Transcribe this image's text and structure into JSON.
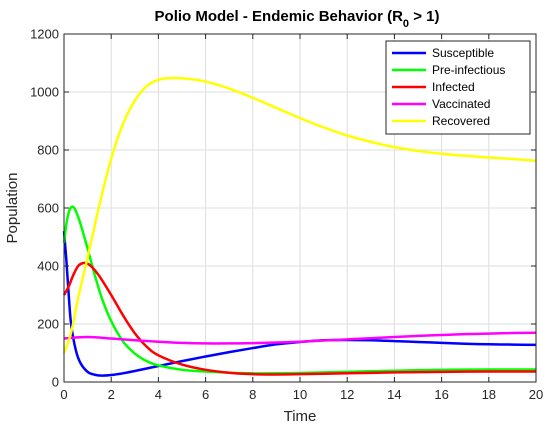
{
  "chart_data": {
    "type": "line",
    "title": {
      "main": "Polio Model - Endemic Behavior (R",
      "sub": "0",
      "tail": " > 1)"
    },
    "xlabel": "Time",
    "ylabel": "Population",
    "xlim": [
      0,
      20
    ],
    "ylim": [
      0,
      1200
    ],
    "xticks": [
      0,
      2,
      4,
      6,
      8,
      10,
      12,
      14,
      16,
      18,
      20
    ],
    "yticks": [
      0,
      200,
      400,
      600,
      800,
      1000,
      1200
    ],
    "grid": true,
    "legend_position": "top-right",
    "series": [
      {
        "name": "Susceptible",
        "color": "#0000ff",
        "x": [
          0,
          0.1,
          0.2,
          0.3,
          0.5,
          0.7,
          1.0,
          1.3,
          1.6,
          2,
          2.5,
          3,
          4,
          5,
          6,
          7,
          8,
          9,
          10,
          11,
          12,
          13,
          14,
          15,
          16,
          17,
          18,
          19,
          20
        ],
        "y": [
          520,
          420,
          300,
          200,
          110,
          65,
          35,
          25,
          22,
          24,
          30,
          38,
          55,
          72,
          88,
          103,
          117,
          130,
          138,
          144,
          145,
          144,
          141,
          138,
          135,
          132,
          130,
          129,
          128
        ]
      },
      {
        "name": "Pre-infectious",
        "color": "#00ff00",
        "x": [
          0,
          0.1,
          0.2,
          0.3,
          0.4,
          0.5,
          0.7,
          1.0,
          1.3,
          1.6,
          2,
          2.5,
          3,
          3.5,
          4,
          5,
          6,
          7,
          8,
          9,
          10,
          12,
          14,
          16,
          18,
          20
        ],
        "y": [
          480,
          545,
          585,
          602,
          603,
          590,
          545,
          460,
          370,
          290,
          210,
          140,
          98,
          72,
          57,
          42,
          36,
          32,
          30,
          30,
          31,
          35,
          39,
          42,
          43,
          43
        ]
      },
      {
        "name": "Infected",
        "color": "#ff0000",
        "x": [
          0,
          0.2,
          0.4,
          0.6,
          0.8,
          1.0,
          1.2,
          1.5,
          2,
          2.5,
          3,
          3.5,
          4,
          5,
          6,
          7,
          8,
          9,
          10,
          12,
          14,
          16,
          18,
          20
        ],
        "y": [
          300,
          330,
          370,
          400,
          410,
          408,
          395,
          365,
          300,
          230,
          168,
          122,
          92,
          60,
          42,
          32,
          27,
          26,
          27,
          30,
          33,
          35,
          36,
          36
        ]
      },
      {
        "name": "Vaccinated",
        "color": "#ff00ff",
        "x": [
          0,
          1,
          2,
          3,
          4,
          5,
          6,
          7,
          8,
          9,
          10,
          11,
          12,
          13,
          14,
          15,
          16,
          17,
          18,
          19,
          20
        ],
        "y": [
          150,
          155,
          150,
          144,
          139,
          135,
          133,
          133,
          134,
          136,
          139,
          143,
          147,
          151,
          155,
          159,
          162,
          165,
          167,
          169,
          170
        ]
      },
      {
        "name": "Recovered",
        "color": "#ffff00",
        "x": [
          0,
          0.3,
          0.6,
          1.0,
          1.5,
          2,
          2.5,
          3,
          3.5,
          4,
          4.5,
          5,
          5.5,
          6,
          7,
          8,
          9,
          10,
          11,
          12,
          13,
          14,
          15,
          16,
          17,
          18,
          19,
          20
        ],
        "y": [
          100,
          170,
          290,
          430,
          610,
          770,
          890,
          970,
          1020,
          1042,
          1048,
          1047,
          1043,
          1036,
          1012,
          980,
          945,
          910,
          878,
          850,
          828,
          810,
          797,
          787,
          780,
          774,
          769,
          763
        ]
      }
    ]
  }
}
